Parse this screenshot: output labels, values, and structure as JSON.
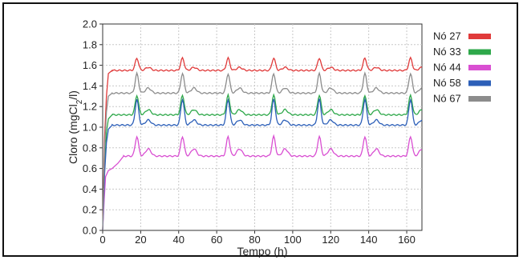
{
  "chart_data": {
    "type": "line",
    "xlabel": "Tempo (h)",
    "ylabel_parts": [
      "Cloro (mgCl",
      "2",
      "/l)"
    ],
    "xlim": [
      0,
      168
    ],
    "ylim": [
      0,
      2.0
    ],
    "x_ticks": [
      "0",
      "20",
      "40",
      "60",
      "80",
      "100",
      "120",
      "140",
      "160"
    ],
    "y_ticks": [
      "0.0",
      "0.2",
      "0.4",
      "0.6",
      "0.8",
      "1.0",
      "1.2",
      "1.4",
      "1.6",
      "1.8",
      "2.0"
    ],
    "grid": true,
    "legend_position": "right",
    "peak_times": [
      18,
      42,
      66,
      90,
      114,
      138,
      162
    ],
    "series": [
      {
        "name": "Nó 27",
        "color": "#e03a3a",
        "baseline": 1.55,
        "peak": 1.67,
        "secondary": 1.58,
        "x": [
          0,
          1,
          2,
          3,
          5,
          168
        ],
        "y": [
          0,
          0.9,
          1.3,
          1.52,
          1.55,
          1.55
        ]
      },
      {
        "name": "Nó 33",
        "color": "#2ea84a",
        "baseline": 1.12,
        "peak": 1.31,
        "secondary": 1.17,
        "x": [
          0,
          1,
          2,
          3,
          5,
          168
        ],
        "y": [
          0,
          0.6,
          0.95,
          1.08,
          1.12,
          1.12
        ]
      },
      {
        "name": "Nó 44",
        "color": "#d94fd2",
        "baseline": 0.72,
        "peak": 0.91,
        "secondary": 0.79,
        "x": [
          0,
          0.8,
          1.5,
          3,
          5,
          8,
          11,
          168
        ],
        "y": [
          0,
          0.3,
          0.52,
          0.58,
          0.6,
          0.65,
          0.72,
          0.72
        ]
      },
      {
        "name": "Nó 58",
        "color": "#2c5fb8",
        "baseline": 1.02,
        "peak": 1.27,
        "secondary": 1.07,
        "x": [
          0,
          1,
          2,
          3,
          5,
          168
        ],
        "y": [
          0,
          0.55,
          0.85,
          0.98,
          1.02,
          1.02
        ]
      },
      {
        "name": "Nó 67",
        "color": "#8c8c8c",
        "baseline": 1.33,
        "peak": 1.52,
        "secondary": 1.38,
        "x": [
          0,
          1,
          2,
          3,
          5,
          168
        ],
        "y": [
          0,
          0.8,
          1.15,
          1.3,
          1.33,
          1.33
        ]
      }
    ]
  }
}
